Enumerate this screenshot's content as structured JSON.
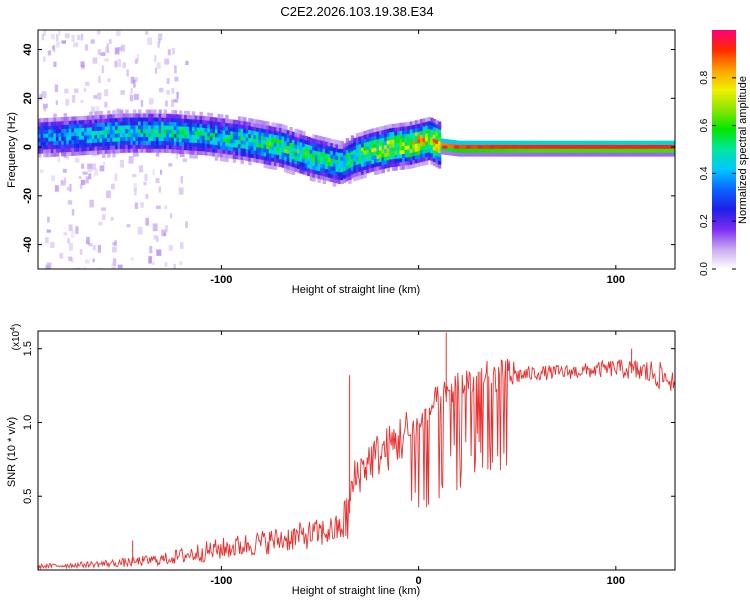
{
  "title": "C2E2.2026.103.19.38.E34",
  "chart_data": [
    {
      "type": "heatmap",
      "title": "C2E2.2026.103.19.38.E34",
      "xlabel": "Height of straight line (km)",
      "ylabel": "Frequency (Hz)",
      "xlim": [
        -193,
        130
      ],
      "ylim": [
        -50,
        48
      ],
      "xticks": [
        -100,
        0,
        100
      ],
      "xtick_labels": [
        "-100",
        "",
        "100"
      ],
      "yticks": [
        -40,
        -20,
        0,
        20,
        40
      ],
      "ytick_labels": [
        "-40",
        "-20",
        "0",
        "20",
        "40"
      ],
      "ridge": {
        "x": [
          -193,
          -170,
          -150,
          -130,
          -110,
          -90,
          -70,
          -55,
          -40,
          -33,
          -25,
          -15,
          -5,
          0,
          5,
          10,
          20,
          60,
          130
        ],
        "frequency_hz": [
          4,
          5,
          6,
          6,
          5,
          3,
          0,
          -4,
          -7,
          -4,
          -2,
          0,
          1,
          2,
          3,
          1,
          0,
          0,
          0
        ],
        "normalized_amplitude": [
          0.35,
          0.42,
          0.48,
          0.5,
          0.45,
          0.5,
          0.55,
          0.55,
          0.5,
          0.6,
          0.65,
          0.7,
          0.75,
          0.8,
          0.75,
          0.85,
          0.9,
          0.95,
          0.95
        ]
      },
      "colorbar": {
        "label": "Normalized spectral amplitude",
        "range": [
          0,
          1
        ],
        "ticks": [
          0.0,
          0.2,
          0.4,
          0.6,
          0.8
        ],
        "tick_labels": [
          "0.0",
          "0.2",
          "0.4",
          "0.6",
          "0.8"
        ],
        "colors": [
          "#ffffff",
          "#c9a9f0",
          "#7b2cf2",
          "#1f1fe6",
          "#0a64ff",
          "#00c8ff",
          "#00e6a0",
          "#00e600",
          "#8ce600",
          "#f0f000",
          "#ffa000",
          "#ff2a00",
          "#ff007a"
        ]
      }
    },
    {
      "type": "line",
      "xlabel": "Height of straight line (km)",
      "ylabel": "SNR (10 * v/v)",
      "y_scale_label": "(x10",
      "y_scale_exponent": "4",
      "y_scale_suffix": ")",
      "xlim": [
        -193,
        130
      ],
      "ylim": [
        0,
        1.62
      ],
      "xticks": [
        -100,
        0,
        100
      ],
      "xtick_labels": [
        "-100",
        "0",
        "100"
      ],
      "yticks": [
        0.5,
        1.0,
        1.5
      ],
      "ytick_labels": [
        "0.5",
        "1.0",
        "1.5"
      ],
      "color": "#e8302f",
      "envelope": {
        "x": [
          -193,
          -170,
          -150,
          -130,
          -110,
          -90,
          -70,
          -50,
          -40,
          -36,
          -33,
          -30,
          -25,
          -15,
          -5,
          0,
          5,
          15,
          20,
          30,
          45,
          50,
          60,
          80,
          100,
          110,
          120,
          130
        ],
        "base": [
          0.02,
          0.03,
          0.04,
          0.06,
          0.1,
          0.14,
          0.18,
          0.22,
          0.25,
          0.3,
          0.55,
          0.62,
          0.7,
          0.78,
          0.88,
          0.95,
          1.05,
          1.15,
          1.2,
          1.25,
          1.28,
          1.3,
          1.32,
          1.33,
          1.35,
          1.33,
          1.3,
          1.25
        ],
        "noise": [
          0.03,
          0.04,
          0.06,
          0.08,
          0.14,
          0.16,
          0.18,
          0.2,
          0.2,
          0.4,
          0.3,
          0.3,
          0.3,
          0.32,
          0.38,
          0.42,
          0.45,
          0.45,
          0.5,
          0.48,
          0.42,
          0.12,
          0.1,
          0.1,
          0.12,
          0.15,
          0.2,
          0.15
        ]
      },
      "peaks": [
        {
          "x": -145,
          "y": 0.2
        },
        {
          "x": -35,
          "y": 1.32
        },
        {
          "x": 14,
          "y": 1.61
        },
        {
          "x": 108,
          "y": 1.5
        }
      ]
    }
  ]
}
